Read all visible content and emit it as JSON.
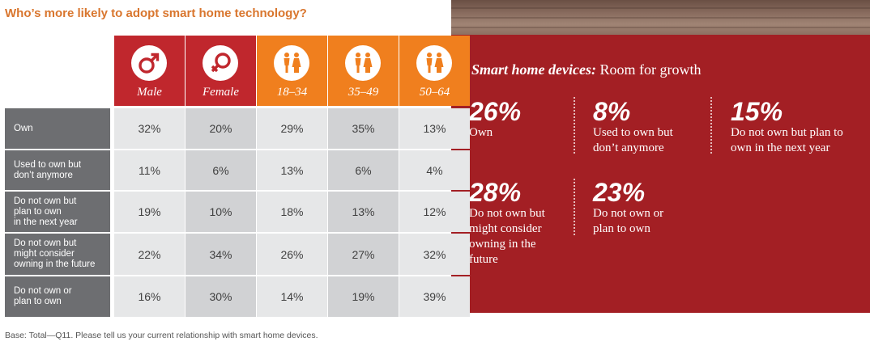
{
  "title": "Who’s more likely to adopt smart home technology?",
  "colors": {
    "male": "#c0272d",
    "female": "#c0272d",
    "age": "#f07f1e",
    "row_label_bg": "#6d6e71",
    "panel_bg": "#a31f24"
  },
  "chart_data": {
    "type": "table",
    "title": "Who’s more likely to adopt smart home technology?",
    "columns": [
      {
        "label": "Male",
        "icon": "male-icon"
      },
      {
        "label": "Female",
        "icon": "female-icon"
      },
      {
        "label": "18–34",
        "icon": "people-icon"
      },
      {
        "label": "35–49",
        "icon": "people-icon"
      },
      {
        "label": "50–64",
        "icon": "people-icon"
      }
    ],
    "rows": [
      {
        "label": "Own",
        "values": [
          "32%",
          "20%",
          "29%",
          "35%",
          "13%"
        ]
      },
      {
        "label": "Used to own but don’t anymore",
        "values": [
          "11%",
          "6%",
          "13%",
          "6%",
          "4%"
        ]
      },
      {
        "label": "Do not own but plan to own in the next year",
        "values": [
          "19%",
          "10%",
          "18%",
          "13%",
          "12%"
        ]
      },
      {
        "label": "Do not own but might consider owning in the future",
        "values": [
          "22%",
          "34%",
          "26%",
          "27%",
          "32%"
        ]
      },
      {
        "label": "Do not own or plan to own",
        "values": [
          "16%",
          "30%",
          "14%",
          "19%",
          "39%"
        ]
      }
    ]
  },
  "row_label_lines": [
    [
      "Own"
    ],
    [
      "Used to own but",
      "don’t anymore"
    ],
    [
      "Do not own but",
      "plan to own",
      "in the next year"
    ],
    [
      "Do not own but",
      "might consider",
      "owning in the future"
    ],
    [
      "Do not own or",
      "plan to own"
    ]
  ],
  "footnote": "Base: Total—Q11. Please tell us your current relationship with smart home devices.",
  "panel": {
    "title_bold": "Smart home devices:",
    "title_rest": "Room for growth",
    "stats": [
      {
        "value": "26%",
        "lines": [
          "Own"
        ]
      },
      {
        "value": "8%",
        "lines": [
          "Used to own but",
          "don’t anymore"
        ]
      },
      {
        "value": "15%",
        "lines": [
          "Do not own but plan to",
          "own in the next year"
        ]
      },
      {
        "value": "28%",
        "lines": [
          "Do not own but",
          "might consider",
          "owning in the",
          "future"
        ]
      },
      {
        "value": "23%",
        "lines": [
          "Do not own or",
          "plan to own"
        ]
      }
    ]
  }
}
